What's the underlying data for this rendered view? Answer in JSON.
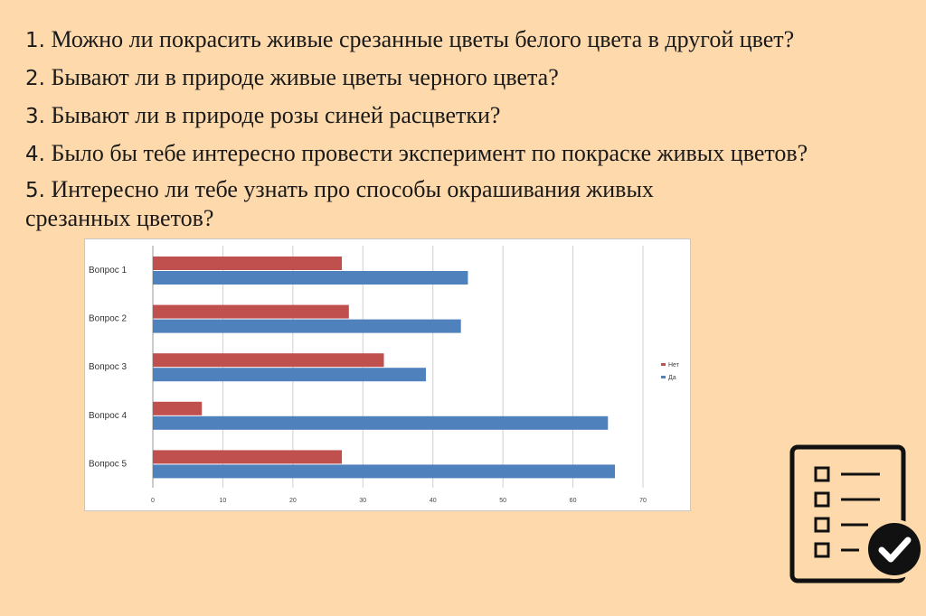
{
  "questions": [
    {
      "num": "1.",
      "text": " Можно ли покрасить живые срезанные цветы белого цвета в другой цвет?"
    },
    {
      "num": "2.",
      "text": " Бывают ли в природе живые цветы черного цвета?"
    },
    {
      "num": "3.",
      "text": " Бывают ли в природе розы синей расцветки?"
    },
    {
      "num": "4.",
      "text": " Было бы тебе интересно провести эксперимент по покраске живых цветов?"
    },
    {
      "num": "5.",
      "text": " Интересно ли тебе узнать про способы окрашивания живых",
      "text2": "срезанных цветов?"
    }
  ],
  "chart_data": {
    "type": "bar",
    "orientation": "horizontal",
    "categories": [
      "Вопрос 1",
      "Вопрос 2",
      "Вопрос 3",
      "Вопрос 4",
      "Вопрос 5"
    ],
    "series": [
      {
        "name": "Нет",
        "color": "#c0504d",
        "values": [
          27,
          28,
          33,
          7,
          27
        ]
      },
      {
        "name": "Да",
        "color": "#4f81bd",
        "values": [
          45,
          44,
          39,
          65,
          66
        ]
      }
    ],
    "xlim": [
      0,
      70
    ],
    "xticks": [
      0,
      10,
      20,
      30,
      40,
      50,
      60,
      70
    ],
    "grid": true,
    "legend": "right"
  },
  "icon": "checklist-icon"
}
